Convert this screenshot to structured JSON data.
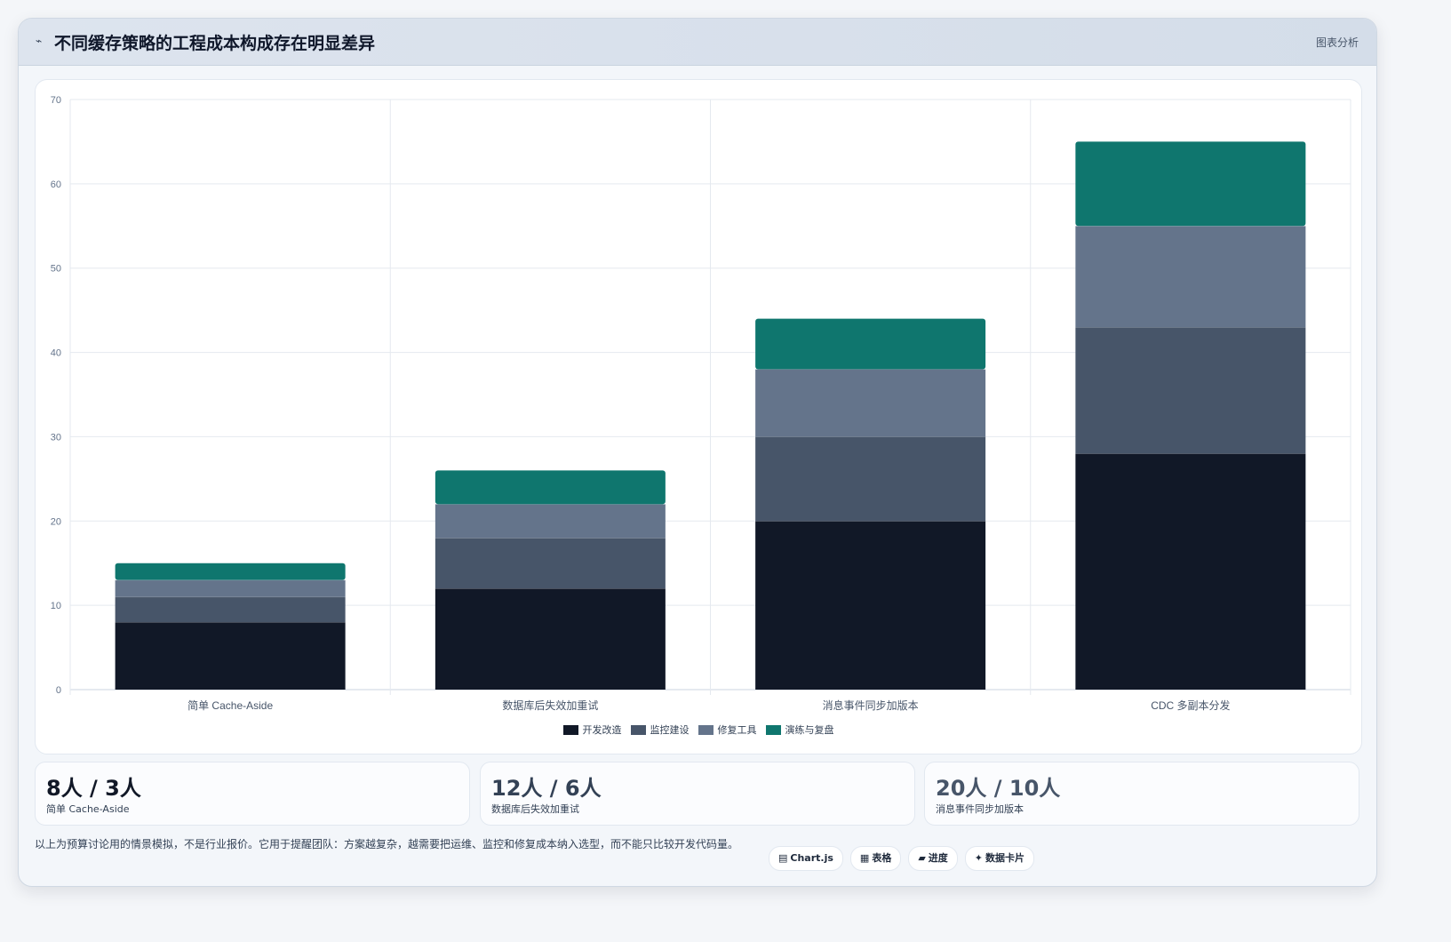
{
  "header": {
    "icon": "trend-icon",
    "title": "不同缓存策略的工程成本构成存在明显差异",
    "tag": "图表分析"
  },
  "chart_data": {
    "type": "bar",
    "stacked": true,
    "categories": [
      "简单 Cache-Aside",
      "数据库后失效加重试",
      "消息事件同步加版本",
      "CDC 多副本分发"
    ],
    "series": [
      {
        "name": "开发改造",
        "color": "#111827",
        "values": [
          8,
          12,
          20,
          28
        ]
      },
      {
        "name": "监控建设",
        "color": "#475569",
        "values": [
          3,
          6,
          10,
          15
        ]
      },
      {
        "name": "修复工具",
        "color": "#64748b",
        "values": [
          2,
          4,
          8,
          12
        ]
      },
      {
        "name": "演练与复盘",
        "color": "#0f766e",
        "values": [
          2,
          4,
          6,
          10
        ]
      }
    ],
    "ylim": [
      0,
      70
    ],
    "yticks": [
      0,
      10,
      20,
      30,
      40,
      50,
      60,
      70
    ],
    "grid": true,
    "legend": "bottom"
  },
  "stats": [
    {
      "value": "8人 / 3人",
      "label": "简单 Cache-Aside",
      "color": "#111827"
    },
    {
      "value": "12人 / 6人",
      "label": "数据库后失效加重试",
      "color": "#334155"
    },
    {
      "value": "20人 / 10人",
      "label": "消息事件同步加版本",
      "color": "#475569"
    }
  ],
  "footer": {
    "note": "以上为预算讨论用的情景模拟，不是行业报价。它用于提醒团队：方案越复杂，越需要把运维、监控和修复成本纳入选型，而不能只比较开发代码量。",
    "chips": [
      {
        "icon": "chart-icon",
        "glyph": "▤",
        "label": "Chart.js"
      },
      {
        "icon": "table-icon",
        "glyph": "▦",
        "label": "表格"
      },
      {
        "icon": "progress-icon",
        "glyph": "▰",
        "label": "进度"
      },
      {
        "icon": "sparkle-icon",
        "glyph": "✦",
        "label": "数据卡片"
      }
    ]
  }
}
